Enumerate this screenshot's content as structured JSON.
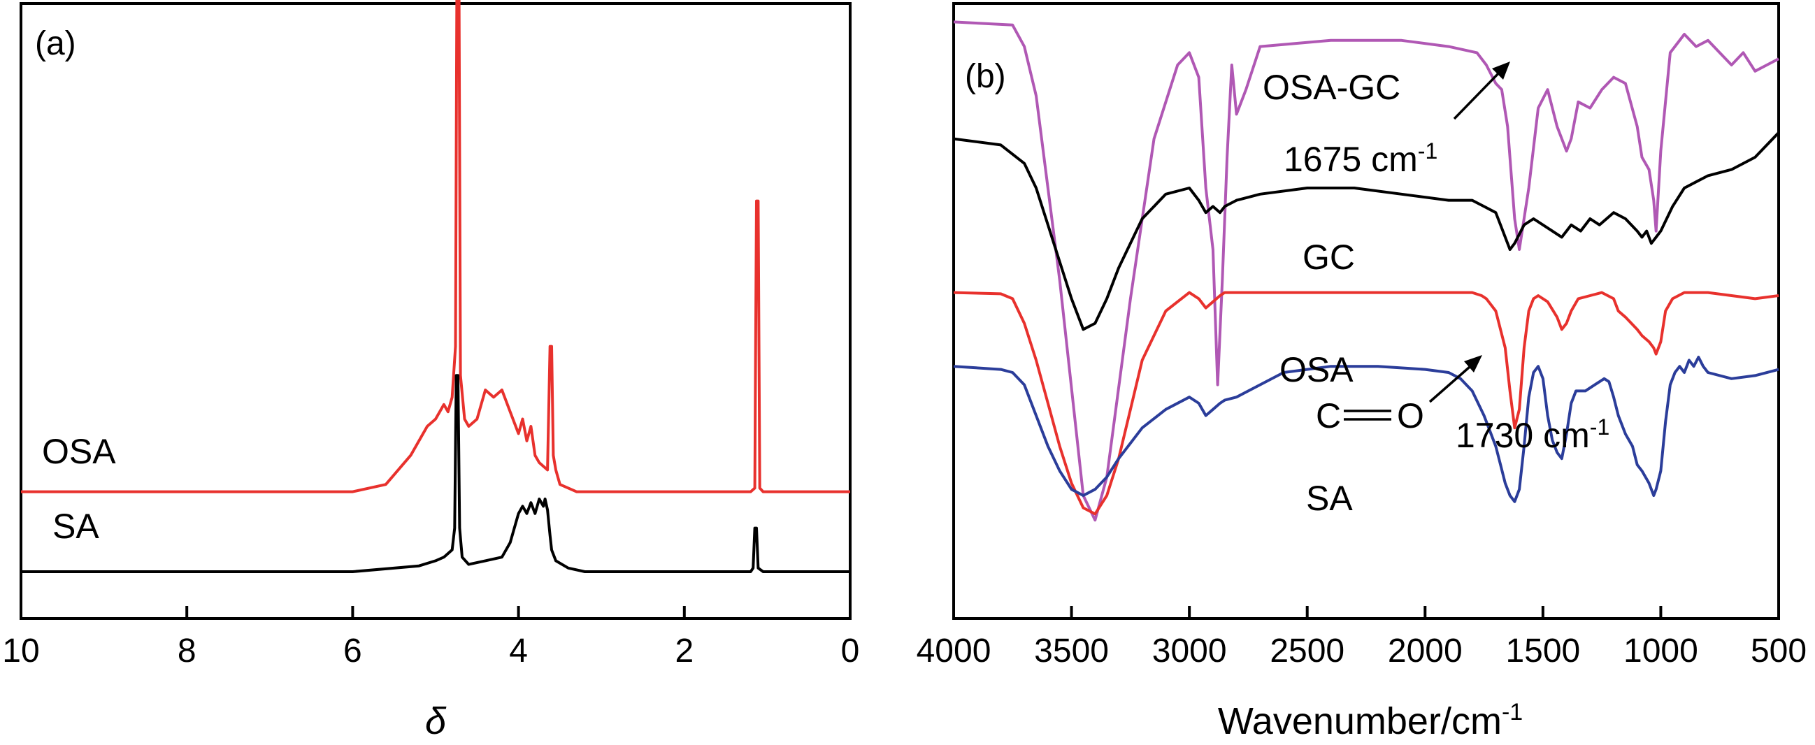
{
  "chart_data": [
    {
      "type": "line",
      "panel_label": "(a)",
      "xlabel": "δ",
      "xlim": [
        10,
        0
      ],
      "x_reversed": true,
      "y_ticks": "none",
      "xticks": [
        "10",
        "8",
        "6",
        "4",
        "2",
        "0"
      ],
      "xtick_values": [
        10,
        8,
        6,
        4,
        2,
        0
      ],
      "series": [
        {
          "name": "OSA",
          "color": "#e8312d",
          "baseline": 0.0,
          "offset": 0.11,
          "x": [
            10,
            6.0,
            5.6,
            5.3,
            5.1,
            5.0,
            4.9,
            4.85,
            4.8,
            4.76,
            4.74,
            4.72,
            4.7,
            4.65,
            4.6,
            4.5,
            4.4,
            4.3,
            4.2,
            4.1,
            4.0,
            3.95,
            3.9,
            3.85,
            3.8,
            3.75,
            3.65,
            3.62,
            3.6,
            3.58,
            3.55,
            3.5,
            3.3,
            1.2,
            1.15,
            1.13,
            1.11,
            1.09,
            1.05,
            0
          ],
          "y": [
            0,
            0,
            0.01,
            0.05,
            0.09,
            0.1,
            0.12,
            0.11,
            0.13,
            0.2,
            0.78,
            0.78,
            0.16,
            0.1,
            0.09,
            0.1,
            0.14,
            0.13,
            0.14,
            0.11,
            0.08,
            0.1,
            0.07,
            0.09,
            0.05,
            0.04,
            0.03,
            0.2,
            0.2,
            0.05,
            0.03,
            0.01,
            0,
            0,
            0.005,
            0.4,
            0.4,
            0.005,
            0,
            0
          ]
        },
        {
          "name": "SA",
          "color": "#000000",
          "baseline": 0.0,
          "offset": 0.0,
          "x": [
            10,
            6.0,
            5.2,
            5.0,
            4.9,
            4.8,
            4.77,
            4.75,
            4.73,
            4.71,
            4.68,
            4.6,
            4.4,
            4.2,
            4.1,
            4.0,
            3.95,
            3.9,
            3.85,
            3.8,
            3.75,
            3.7,
            3.68,
            3.65,
            3.62,
            3.6,
            3.55,
            3.4,
            3.2,
            1.2,
            1.17,
            1.15,
            1.13,
            1.11,
            1.05,
            0
          ],
          "y": [
            0,
            0,
            0.008,
            0.015,
            0.02,
            0.03,
            0.06,
            0.27,
            0.27,
            0.06,
            0.02,
            0.01,
            0.015,
            0.02,
            0.04,
            0.08,
            0.09,
            0.08,
            0.095,
            0.08,
            0.1,
            0.09,
            0.1,
            0.085,
            0.05,
            0.03,
            0.015,
            0.005,
            0,
            0,
            0.005,
            0.06,
            0.06,
            0.005,
            0,
            0
          ]
        }
      ]
    },
    {
      "type": "line",
      "panel_label": "(b)",
      "xlabel": "Wavenumber/cm",
      "xlabel_sup": "-1",
      "xlim": [
        4000,
        500
      ],
      "x_reversed": true,
      "y_ticks": "none",
      "xticks": [
        "4000",
        "3500",
        "3000",
        "2500",
        "2000",
        "1500",
        "1000",
        "500"
      ],
      "xtick_values": [
        4000,
        3500,
        3000,
        2500,
        2000,
        1500,
        1000,
        500
      ],
      "series": [
        {
          "name": "OSA-GC",
          "color": "#b058b4",
          "x": [
            4000,
            3750,
            3700,
            3650,
            3550,
            3450,
            3400,
            3350,
            3250,
            3150,
            3050,
            3000,
            2960,
            2930,
            2900,
            2880,
            2860,
            2840,
            2820,
            2800,
            2760,
            2700,
            2400,
            2100,
            1900,
            1780,
            1740,
            1700,
            1675,
            1650,
            1620,
            1600,
            1560,
            1520,
            1480,
            1440,
            1400,
            1380,
            1350,
            1300,
            1250,
            1200,
            1150,
            1100,
            1080,
            1050,
            1030,
            1020,
            1000,
            960,
            900,
            850,
            800,
            750,
            700,
            650,
            600,
            550,
            500
          ],
          "y": [
            0.97,
            0.965,
            0.93,
            0.85,
            0.55,
            0.2,
            0.16,
            0.23,
            0.52,
            0.78,
            0.9,
            0.92,
            0.88,
            0.7,
            0.6,
            0.38,
            0.55,
            0.75,
            0.9,
            0.82,
            0.86,
            0.93,
            0.94,
            0.94,
            0.93,
            0.92,
            0.9,
            0.87,
            0.86,
            0.8,
            0.65,
            0.6,
            0.7,
            0.83,
            0.86,
            0.8,
            0.76,
            0.78,
            0.84,
            0.83,
            0.86,
            0.88,
            0.87,
            0.8,
            0.75,
            0.73,
            0.68,
            0.63,
            0.76,
            0.92,
            0.95,
            0.93,
            0.94,
            0.92,
            0.9,
            0.92,
            0.89,
            0.9,
            0.91
          ]
        },
        {
          "name": "GC",
          "color": "#000000",
          "x": [
            4000,
            3800,
            3700,
            3650,
            3600,
            3550,
            3500,
            3450,
            3400,
            3350,
            3300,
            3200,
            3100,
            3000,
            2960,
            2930,
            2900,
            2870,
            2850,
            2800,
            2700,
            2500,
            2300,
            2100,
            1900,
            1800,
            1750,
            1700,
            1680,
            1650,
            1640,
            1620,
            1580,
            1540,
            1500,
            1460,
            1420,
            1400,
            1380,
            1340,
            1300,
            1260,
            1200,
            1150,
            1100,
            1080,
            1060,
            1040,
            1020,
            1000,
            950,
            900,
            850,
            800,
            700,
            600,
            500
          ],
          "y": [
            0.78,
            0.77,
            0.74,
            0.7,
            0.64,
            0.58,
            0.52,
            0.47,
            0.48,
            0.52,
            0.57,
            0.65,
            0.69,
            0.7,
            0.68,
            0.66,
            0.67,
            0.66,
            0.67,
            0.68,
            0.69,
            0.7,
            0.7,
            0.69,
            0.68,
            0.68,
            0.67,
            0.66,
            0.64,
            0.61,
            0.6,
            0.61,
            0.64,
            0.65,
            0.64,
            0.63,
            0.62,
            0.63,
            0.64,
            0.63,
            0.65,
            0.64,
            0.66,
            0.65,
            0.63,
            0.62,
            0.63,
            0.61,
            0.62,
            0.63,
            0.67,
            0.7,
            0.71,
            0.72,
            0.73,
            0.75,
            0.79
          ]
        },
        {
          "name": "OSA",
          "color": "#e8312d",
          "x": [
            4000,
            3800,
            3750,
            3700,
            3650,
            3600,
            3550,
            3500,
            3450,
            3400,
            3350,
            3300,
            3250,
            3200,
            3100,
            3000,
            2960,
            2930,
            2900,
            2870,
            2850,
            2800,
            2500,
            2200,
            1900,
            1800,
            1760,
            1740,
            1730,
            1700,
            1660,
            1640,
            1620,
            1600,
            1580,
            1560,
            1540,
            1520,
            1480,
            1440,
            1420,
            1400,
            1380,
            1350,
            1300,
            1250,
            1200,
            1180,
            1150,
            1100,
            1080,
            1050,
            1030,
            1020,
            1000,
            980,
            950,
            900,
            800,
            700,
            600,
            500
          ],
          "y": [
            0.53,
            0.528,
            0.52,
            0.48,
            0.42,
            0.35,
            0.28,
            0.22,
            0.18,
            0.17,
            0.2,
            0.26,
            0.34,
            0.42,
            0.5,
            0.53,
            0.52,
            0.505,
            0.515,
            0.525,
            0.53,
            0.53,
            0.53,
            0.53,
            0.53,
            0.53,
            0.525,
            0.52,
            0.515,
            0.5,
            0.44,
            0.37,
            0.31,
            0.34,
            0.44,
            0.5,
            0.52,
            0.525,
            0.515,
            0.49,
            0.47,
            0.48,
            0.5,
            0.52,
            0.525,
            0.53,
            0.52,
            0.5,
            0.49,
            0.47,
            0.46,
            0.45,
            0.44,
            0.43,
            0.45,
            0.5,
            0.52,
            0.53,
            0.53,
            0.525,
            0.52,
            0.525
          ]
        },
        {
          "name": "SA",
          "color": "#2b3d9a",
          "x": [
            4000,
            3800,
            3750,
            3700,
            3650,
            3600,
            3550,
            3500,
            3450,
            3400,
            3350,
            3300,
            3200,
            3100,
            3000,
            2960,
            2930,
            2900,
            2870,
            2850,
            2800,
            2600,
            2400,
            2200,
            2000,
            1900,
            1850,
            1800,
            1750,
            1700,
            1680,
            1660,
            1640,
            1620,
            1600,
            1580,
            1560,
            1540,
            1520,
            1500,
            1480,
            1460,
            1440,
            1420,
            1400,
            1380,
            1360,
            1320,
            1280,
            1240,
            1220,
            1200,
            1180,
            1150,
            1120,
            1100,
            1080,
            1050,
            1030,
            1020,
            1000,
            980,
            960,
            940,
            920,
            900,
            880,
            860,
            840,
            820,
            800,
            700,
            600,
            500
          ],
          "y": [
            0.41,
            0.405,
            0.4,
            0.38,
            0.33,
            0.28,
            0.24,
            0.21,
            0.2,
            0.21,
            0.23,
            0.26,
            0.31,
            0.34,
            0.36,
            0.35,
            0.33,
            0.34,
            0.35,
            0.355,
            0.36,
            0.4,
            0.41,
            0.41,
            0.405,
            0.4,
            0.39,
            0.37,
            0.33,
            0.28,
            0.25,
            0.22,
            0.2,
            0.19,
            0.21,
            0.28,
            0.36,
            0.4,
            0.41,
            0.39,
            0.33,
            0.29,
            0.27,
            0.26,
            0.3,
            0.35,
            0.37,
            0.37,
            0.38,
            0.39,
            0.385,
            0.36,
            0.33,
            0.3,
            0.28,
            0.25,
            0.24,
            0.22,
            0.2,
            0.21,
            0.24,
            0.32,
            0.38,
            0.4,
            0.41,
            0.4,
            0.42,
            0.41,
            0.425,
            0.41,
            0.4,
            0.39,
            0.395,
            0.405
          ]
        }
      ],
      "annotations": [
        {
          "text": "1675 cm",
          "sup": "-1",
          "arrow_to_x": 1675,
          "series": "OSA-GC"
        },
        {
          "text": "1730 cm",
          "sup": "-1",
          "arrow_to_x": 1730,
          "series": "OSA"
        },
        {
          "text": "C",
          "bond": "double",
          "text2": "O"
        }
      ]
    }
  ]
}
